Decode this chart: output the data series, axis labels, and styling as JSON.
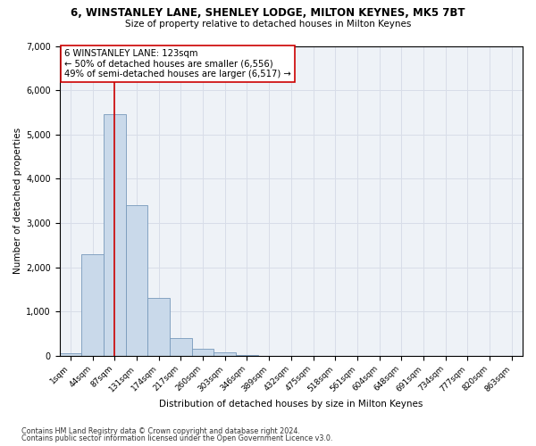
{
  "title": "6, WINSTANLEY LANE, SHENLEY LODGE, MILTON KEYNES, MK5 7BT",
  "subtitle": "Size of property relative to detached houses in Milton Keynes",
  "xlabel": "Distribution of detached houses by size in Milton Keynes",
  "ylabel": "Number of detached properties",
  "footnote1": "Contains HM Land Registry data © Crown copyright and database right 2024.",
  "footnote2": "Contains public sector information licensed under the Open Government Licence v3.0.",
  "bar_labels": [
    "1sqm",
    "44sqm",
    "87sqm",
    "131sqm",
    "174sqm",
    "217sqm",
    "260sqm",
    "303sqm",
    "346sqm",
    "389sqm",
    "432sqm",
    "475sqm",
    "518sqm",
    "561sqm",
    "604sqm",
    "648sqm",
    "691sqm",
    "734sqm",
    "777sqm",
    "820sqm",
    "863sqm"
  ],
  "bar_values": [
    50,
    2300,
    5450,
    3400,
    1300,
    400,
    150,
    70,
    10,
    3,
    1,
    0,
    0,
    0,
    0,
    0,
    0,
    0,
    0,
    0,
    0
  ],
  "bar_color": "#c9d9ea",
  "bar_edge_color": "#7799bb",
  "grid_color": "#d8dde8",
  "background_color": "#eef2f7",
  "annotation_line1": "6 WINSTANLEY LANE: 123sqm",
  "annotation_line2": "← 50% of detached houses are smaller (6,556)",
  "annotation_line3": "49% of semi-detached houses are larger (6,517) →",
  "vline_x": 2.0,
  "vline_color": "#cc0000",
  "annotation_box_color": "#ffffff",
  "annotation_box_edge": "#cc0000",
  "ylim": [
    0,
    7000
  ],
  "yticks": [
    0,
    1000,
    2000,
    3000,
    4000,
    5000,
    6000,
    7000
  ]
}
